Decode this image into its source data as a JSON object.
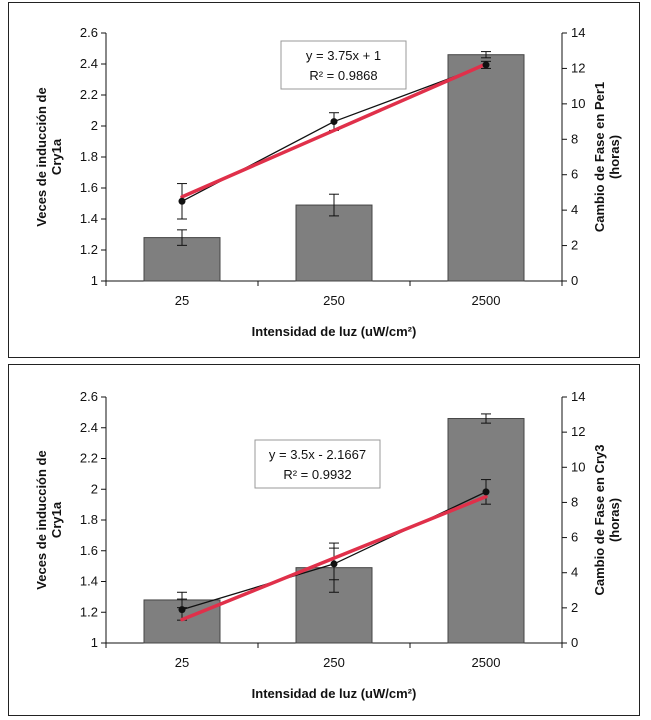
{
  "chart_data": [
    {
      "type": "bar",
      "categories": [
        "25",
        "250",
        "2500"
      ],
      "xlabel": "Intensidad de luz (uW/cm²)",
      "ylabel_left": "Veces de inducción de Cry1a",
      "ylabel_right": "Cambio de Fase en Per1 (horas)",
      "ylim_left": [
        1,
        2.6
      ],
      "ylim_right": [
        0,
        14
      ],
      "yticks_left": [
        "1",
        "1.2",
        "1.4",
        "1.6",
        "1.8",
        "2",
        "2.2",
        "2.4",
        "2.6"
      ],
      "yticks_right": [
        "0",
        "2",
        "4",
        "6",
        "8",
        "10",
        "12",
        "14"
      ],
      "series": [
        {
          "axis": "left",
          "kind": "bar",
          "values": [
            1.28,
            1.49,
            2.46
          ],
          "errors": [
            0.05,
            0.07,
            0.02
          ],
          "color": "#7f7f7f"
        },
        {
          "axis": "right",
          "kind": "line",
          "values": [
            4.5,
            9.0,
            12.2
          ],
          "errors": [
            1.0,
            0.5,
            0.2
          ],
          "color": "#111111"
        },
        {
          "axis": "right",
          "kind": "trendline",
          "values": [
            4.75,
            8.5,
            12.25
          ],
          "color": "#e0304a"
        }
      ],
      "equation": "y = 3.75x + 1",
      "r2": "R² = 0.9868"
    },
    {
      "type": "bar",
      "categories": [
        "25",
        "250",
        "2500"
      ],
      "xlabel": "Intensidad de luz (uW/cm²)",
      "ylabel_left": "Veces de inducción de Cry1a",
      "ylabel_right": "Cambio de Fase en Cry3 (horas)",
      "ylim_left": [
        1,
        2.6
      ],
      "ylim_right": [
        0,
        14
      ],
      "yticks_left": [
        "1",
        "1.2",
        "1.4",
        "1.6",
        "1.8",
        "2",
        "2.2",
        "2.4",
        "2.6"
      ],
      "yticks_right": [
        "0",
        "2",
        "4",
        "6",
        "8",
        "10",
        "12",
        "14"
      ],
      "series": [
        {
          "axis": "left",
          "kind": "bar",
          "values": [
            1.28,
            1.49,
            2.46
          ],
          "errors": [
            0.05,
            0.16,
            0.03
          ],
          "color": "#7f7f7f"
        },
        {
          "axis": "right",
          "kind": "line",
          "values": [
            1.9,
            4.5,
            8.6
          ],
          "errors": [
            0.6,
            0.9,
            0.7
          ],
          "color": "#111111"
        },
        {
          "axis": "right",
          "kind": "trendline",
          "values": [
            1.33,
            4.83,
            8.33
          ],
          "color": "#e0304a"
        }
      ],
      "equation": "y = 3.5x - 2.1667",
      "r2": "R² = 0.9932"
    }
  ]
}
